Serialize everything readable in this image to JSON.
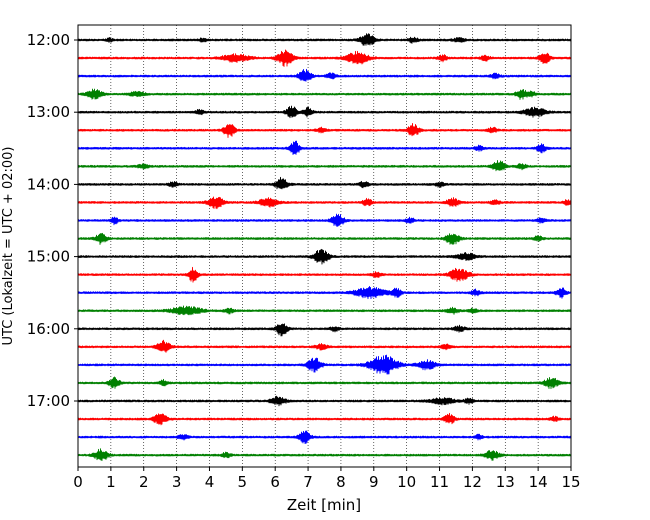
{
  "chart_data": {
    "type": "line",
    "title": "",
    "xlabel": "Zeit  [min]",
    "ylabel": "UTC (Lokalzeit = UTC + 02:00)",
    "xlim": [
      0,
      15
    ],
    "x_ticks": [
      "0",
      "1",
      "2",
      "3",
      "4",
      "5",
      "6",
      "7",
      "8",
      "9",
      "10",
      "11",
      "12",
      "13",
      "14",
      "15"
    ],
    "y_tick_labels": [
      "12:00",
      "13:00",
      "14:00",
      "15:00",
      "16:00",
      "17:00"
    ],
    "grid": "vertical dotted lines at each minute",
    "colors": [
      "#000000",
      "#ff0000",
      "#0000ff",
      "#008000"
    ],
    "traces": [
      {
        "start": "12:00",
        "color": "#000000",
        "bursts": [
          [
            0.95,
            0.2,
            1
          ],
          [
            3.8,
            0.25,
            0.9
          ],
          [
            8.8,
            0.5,
            3
          ],
          [
            10.2,
            0.3,
            1.4
          ],
          [
            11.6,
            0.4,
            1
          ]
        ]
      },
      {
        "start": "12:15",
        "color": "#ff0000",
        "bursts": [
          [
            4.8,
            0.9,
            2
          ],
          [
            6.3,
            0.5,
            4
          ],
          [
            8.5,
            0.7,
            3.2
          ],
          [
            11.1,
            0.3,
            1.5
          ],
          [
            12.4,
            0.3,
            1.4
          ],
          [
            14.2,
            0.35,
            2.8
          ]
        ]
      },
      {
        "start": "12:30",
        "color": "#0000ff",
        "bursts": [
          [
            6.9,
            0.4,
            3.4
          ],
          [
            7.7,
            0.3,
            1.6
          ],
          [
            12.7,
            0.3,
            1.4
          ]
        ]
      },
      {
        "start": "12:45",
        "color": "#008000",
        "bursts": [
          [
            0.5,
            0.5,
            2.4
          ],
          [
            1.8,
            0.5,
            1.2
          ],
          [
            13.5,
            0.35,
            2.6
          ],
          [
            13.8,
            0.25,
            1.5
          ]
        ]
      },
      {
        "start": "13:00",
        "color": "#000000",
        "bursts": [
          [
            3.7,
            0.3,
            1.2
          ],
          [
            6.5,
            0.35,
            3
          ],
          [
            7.0,
            0.3,
            2.2
          ],
          [
            13.9,
            0.7,
            2.4
          ]
        ]
      },
      {
        "start": "13:15",
        "color": "#ff0000",
        "bursts": [
          [
            4.6,
            0.35,
            3.8
          ],
          [
            7.4,
            0.3,
            1.2
          ],
          [
            10.2,
            0.35,
            3.6
          ],
          [
            12.6,
            0.3,
            1.5
          ]
        ]
      },
      {
        "start": "13:30",
        "color": "#0000ff",
        "bursts": [
          [
            6.6,
            0.3,
            4
          ],
          [
            12.2,
            0.3,
            1.2
          ],
          [
            14.1,
            0.3,
            2.4
          ]
        ]
      },
      {
        "start": "13:45",
        "color": "#008000",
        "bursts": [
          [
            2.0,
            0.4,
            1
          ],
          [
            12.8,
            0.4,
            3
          ],
          [
            13.5,
            0.3,
            1.3
          ]
        ]
      },
      {
        "start": "14:00",
        "color": "#000000",
        "bursts": [
          [
            2.9,
            0.3,
            1.2
          ],
          [
            6.2,
            0.4,
            3.4
          ],
          [
            8.7,
            0.3,
            1.5
          ],
          [
            11.0,
            0.3,
            1.2
          ]
        ]
      },
      {
        "start": "14:15",
        "color": "#ff0000",
        "bursts": [
          [
            4.2,
            0.5,
            3
          ],
          [
            5.8,
            0.6,
            2.4
          ],
          [
            8.8,
            0.3,
            1.8
          ],
          [
            11.4,
            0.4,
            2.2
          ],
          [
            12.7,
            0.3,
            1.3
          ],
          [
            14.9,
            0.25,
            1.4
          ]
        ]
      },
      {
        "start": "14:30",
        "color": "#0000ff",
        "bursts": [
          [
            1.1,
            0.25,
            1.8
          ],
          [
            7.9,
            0.4,
            3.4
          ],
          [
            10.1,
            0.3,
            1.4
          ],
          [
            14.1,
            0.3,
            1.2
          ]
        ]
      },
      {
        "start": "14:45",
        "color": "#008000",
        "bursts": [
          [
            0.7,
            0.35,
            2.8
          ],
          [
            11.4,
            0.45,
            3
          ],
          [
            14.0,
            0.3,
            1.2
          ]
        ]
      },
      {
        "start": "15:00",
        "color": "#000000",
        "bursts": [
          [
            7.4,
            0.5,
            3.6
          ],
          [
            11.8,
            0.6,
            1.8
          ]
        ]
      },
      {
        "start": "15:15",
        "color": "#ff0000",
        "bursts": [
          [
            3.5,
            0.3,
            3.6
          ],
          [
            9.1,
            0.3,
            1.4
          ],
          [
            11.6,
            0.6,
            3.4
          ]
        ]
      },
      {
        "start": "15:30",
        "color": "#0000ff",
        "bursts": [
          [
            8.9,
            1.0,
            2.8
          ],
          [
            9.7,
            0.3,
            2.2
          ],
          [
            12.1,
            0.3,
            1.5
          ],
          [
            14.7,
            0.3,
            2.6
          ]
        ]
      },
      {
        "start": "15:45",
        "color": "#008000",
        "bursts": [
          [
            3.3,
            1.0,
            2.2
          ],
          [
            4.6,
            0.3,
            1.3
          ],
          [
            11.4,
            0.4,
            1.5
          ],
          [
            12.0,
            0.3,
            1.2
          ]
        ]
      },
      {
        "start": "16:00",
        "color": "#000000",
        "bursts": [
          [
            6.2,
            0.35,
            3.6
          ],
          [
            7.8,
            0.3,
            1.2
          ],
          [
            11.6,
            0.35,
            1.6
          ]
        ]
      },
      {
        "start": "16:15",
        "color": "#ff0000",
        "bursts": [
          [
            2.6,
            0.45,
            3
          ],
          [
            7.4,
            0.4,
            1.3
          ],
          [
            11.2,
            0.3,
            1.2
          ]
        ]
      },
      {
        "start": "16:30",
        "color": "#0000ff",
        "bursts": [
          [
            7.2,
            0.45,
            3.6
          ],
          [
            9.3,
            0.9,
            5
          ],
          [
            10.6,
            0.6,
            2.4
          ]
        ]
      },
      {
        "start": "16:45",
        "color": "#008000",
        "bursts": [
          [
            1.1,
            0.35,
            2.8
          ],
          [
            2.6,
            0.25,
            1.4
          ],
          [
            14.4,
            0.45,
            2.8
          ]
        ]
      },
      {
        "start": "17:00",
        "color": "#000000",
        "bursts": [
          [
            6.1,
            0.5,
            2.2
          ],
          [
            11.1,
            0.8,
            1.6
          ],
          [
            11.9,
            0.3,
            1.3
          ]
        ]
      },
      {
        "start": "17:15",
        "color": "#ff0000",
        "bursts": [
          [
            2.5,
            0.45,
            2.6
          ],
          [
            11.3,
            0.35,
            2.6
          ],
          [
            14.5,
            0.25,
            1.2
          ]
        ]
      },
      {
        "start": "17:30",
        "color": "#0000ff",
        "bursts": [
          [
            3.2,
            0.3,
            1.4
          ],
          [
            6.9,
            0.35,
            3.6
          ],
          [
            12.2,
            0.25,
            1.2
          ]
        ]
      },
      {
        "start": "17:45",
        "color": "#008000",
        "bursts": [
          [
            0.7,
            0.45,
            3
          ],
          [
            4.5,
            0.3,
            1.3
          ],
          [
            12.6,
            0.45,
            2.6
          ]
        ]
      }
    ]
  }
}
